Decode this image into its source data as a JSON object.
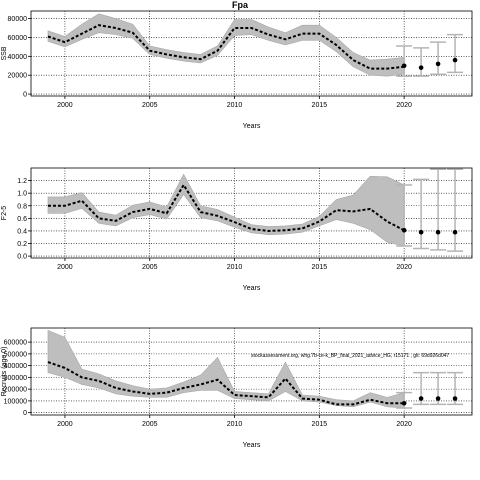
{
  "title": "Fpa",
  "watermark": "stockassessment.org, whg.7b-ce-k_BP_final_2021_advice_HG, r15171 , git: 69d926d047",
  "colors": {
    "band": "#bebebe",
    "line": "#000000",
    "interval": "#b4b4b4",
    "grid": "#000000"
  },
  "chart_data": [
    {
      "type": "line",
      "title": "Fpa",
      "ylabel": "SSB",
      "xlabel": "Years",
      "xlim": [
        1998,
        2024
      ],
      "ylim": [
        -2000,
        88000
      ],
      "xticks": [
        2000,
        2005,
        2010,
        2015,
        2020
      ],
      "yticks": [
        0,
        20000,
        40000,
        60000,
        80000
      ],
      "ytick_labels": [
        "0",
        "20000",
        "40000",
        "60000",
        "80000"
      ],
      "grid": true,
      "years": [
        1999,
        2000,
        2001,
        2002,
        2003,
        2004,
        2005,
        2006,
        2007,
        2008,
        2009,
        2010,
        2011,
        2012,
        2013,
        2014,
        2015,
        2016,
        2017,
        2018,
        2019,
        2020
      ],
      "estimate": [
        61000,
        55000,
        64000,
        73000,
        70000,
        65000,
        46000,
        42000,
        39000,
        37000,
        46000,
        70000,
        70000,
        63000,
        58000,
        64000,
        64000,
        52000,
        36000,
        27000,
        27000,
        29000
      ],
      "lower": [
        56000,
        50000,
        58000,
        65000,
        63000,
        59000,
        42000,
        38000,
        35000,
        33000,
        41000,
        62000,
        63000,
        57000,
        52000,
        57000,
        57000,
        45000,
        29000,
        20000,
        19000,
        21000
      ],
      "upper": [
        67000,
        61000,
        74000,
        85000,
        80000,
        74000,
        51000,
        47000,
        44000,
        42000,
        51000,
        79000,
        79000,
        71000,
        65000,
        73000,
        73000,
        60000,
        44000,
        36000,
        37000,
        39000
      ],
      "forecast": [
        {
          "year": 2020,
          "value": 30000,
          "lower": 19000,
          "upper": 51000
        },
        {
          "year": 2021,
          "value": 28000,
          "lower": 19000,
          "upper": 49000
        },
        {
          "year": 2022,
          "value": 32000,
          "lower": 21000,
          "upper": 55000
        },
        {
          "year": 2023,
          "value": 36000,
          "lower": 23000,
          "upper": 63000
        }
      ]
    },
    {
      "type": "line",
      "ylabel": "F2-5",
      "xlabel": "Years",
      "xlim": [
        1998,
        2024
      ],
      "ylim": [
        -0.03,
        1.4
      ],
      "xticks": [
        2000,
        2005,
        2010,
        2015,
        2020
      ],
      "yticks": [
        0.0,
        0.2,
        0.4,
        0.6,
        0.8,
        1.0,
        1.2
      ],
      "ytick_labels": [
        "0.0",
        "0.2",
        "0.4",
        "0.6",
        "0.8",
        "1.0",
        "1.2"
      ],
      "grid": true,
      "years": [
        1999,
        2000,
        2001,
        2002,
        2003,
        2004,
        2005,
        2006,
        2007,
        2008,
        2009,
        2010,
        2011,
        2012,
        2013,
        2014,
        2015,
        2016,
        2017,
        2018,
        2019,
        2020
      ],
      "estimate": [
        0.8,
        0.8,
        0.88,
        0.6,
        0.56,
        0.7,
        0.75,
        0.68,
        1.13,
        0.7,
        0.64,
        0.54,
        0.43,
        0.4,
        0.41,
        0.44,
        0.55,
        0.73,
        0.71,
        0.75,
        0.55,
        0.41
      ],
      "lower": [
        0.68,
        0.68,
        0.76,
        0.52,
        0.48,
        0.61,
        0.66,
        0.59,
        0.98,
        0.61,
        0.56,
        0.46,
        0.37,
        0.34,
        0.35,
        0.38,
        0.48,
        0.58,
        0.52,
        0.42,
        0.22,
        0.16
      ],
      "upper": [
        0.94,
        0.94,
        1.01,
        0.7,
        0.65,
        0.81,
        0.86,
        0.78,
        1.3,
        0.8,
        0.74,
        0.62,
        0.5,
        0.47,
        0.48,
        0.51,
        0.63,
        0.9,
        0.97,
        1.27,
        1.26,
        1.13
      ],
      "forecast": [
        {
          "year": 2020,
          "value": 0.41,
          "lower": 0.16,
          "upper": 1.13
        },
        {
          "year": 2021,
          "value": 0.38,
          "lower": 0.12,
          "upper": 1.22
        },
        {
          "year": 2022,
          "value": 0.38,
          "lower": 0.1,
          "upper": 1.38
        },
        {
          "year": 2023,
          "value": 0.38,
          "lower": 0.08,
          "upper": 1.38
        }
      ]
    },
    {
      "type": "line",
      "ylabel": "Recruits (age 0)",
      "xlabel": "Years",
      "xlim": [
        1998,
        2024
      ],
      "ylim": [
        -20000,
        720000
      ],
      "xticks": [
        2000,
        2005,
        2010,
        2015,
        2020
      ],
      "yticks": [
        0,
        100000,
        200000,
        300000,
        400000,
        500000,
        600000
      ],
      "ytick_labels": [
        "0",
        "100000",
        "200000",
        "300000",
        "400000",
        "500000",
        "600000"
      ],
      "grid": true,
      "years": [
        1999,
        2000,
        2001,
        2002,
        2003,
        2004,
        2005,
        2006,
        2007,
        2008,
        2009,
        2010,
        2011,
        2012,
        2013,
        2014,
        2015,
        2016,
        2017,
        2018,
        2019,
        2020
      ],
      "estimate": [
        430000,
        380000,
        300000,
        270000,
        210000,
        180000,
        160000,
        170000,
        210000,
        240000,
        280000,
        150000,
        140000,
        130000,
        290000,
        120000,
        110000,
        70000,
        70000,
        110000,
        80000,
        80000
      ],
      "lower": [
        340000,
        300000,
        240000,
        210000,
        160000,
        140000,
        130000,
        130000,
        170000,
        190000,
        190000,
        120000,
        110000,
        100000,
        180000,
        100000,
        90000,
        60000,
        50000,
        90000,
        50000,
        40000
      ],
      "upper": [
        700000,
        640000,
        370000,
        330000,
        270000,
        230000,
        200000,
        210000,
        260000,
        320000,
        470000,
        180000,
        170000,
        160000,
        430000,
        150000,
        140000,
        110000,
        100000,
        170000,
        130000,
        170000
      ],
      "forecast": [
        {
          "year": 2020,
          "value": 80000,
          "lower": 40000,
          "upper": 170000
        },
        {
          "year": 2021,
          "value": 120000,
          "lower": 70000,
          "upper": 340000
        },
        {
          "year": 2022,
          "value": 120000,
          "lower": 70000,
          "upper": 340000
        },
        {
          "year": 2023,
          "value": 120000,
          "lower": 70000,
          "upper": 340000
        }
      ]
    }
  ]
}
